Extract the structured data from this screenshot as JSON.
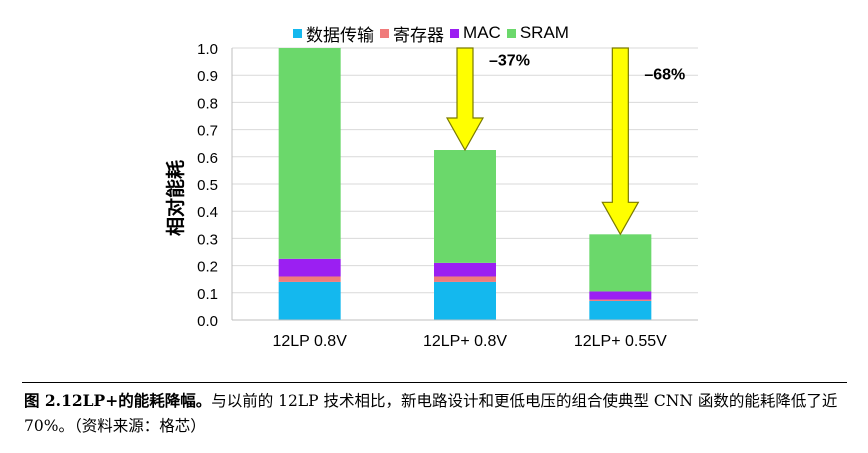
{
  "chart_data": {
    "type": "bar",
    "stacked": true,
    "ylabel": "相对能耗",
    "ylim": [
      0,
      1.0
    ],
    "yticks": [
      "0.0",
      "0.1",
      "0.2",
      "0.3",
      "0.4",
      "0.5",
      "0.6",
      "0.7",
      "0.8",
      "0.9",
      "1.0"
    ],
    "categories": [
      "12LP 0.8V",
      "12LP+ 0.8V",
      "12LP+ 0.55V"
    ],
    "series": [
      {
        "name": "数据传输",
        "color": "#14b8ee",
        "values": [
          0.14,
          0.14,
          0.07
        ]
      },
      {
        "name": "寄存器",
        "color": "#f07b7b",
        "values": [
          0.02,
          0.02,
          0.005
        ]
      },
      {
        "name": "MAC",
        "color": "#9b1ff2",
        "values": [
          0.065,
          0.05,
          0.03
        ]
      },
      {
        "name": "SRAM",
        "color": "#6bd86b",
        "values": [
          0.775,
          0.415,
          0.21
        ]
      }
    ],
    "annotations": [
      {
        "text": "–37%",
        "from": 1.0,
        "to": 0.625,
        "category_index": 1
      },
      {
        "text": "–68%",
        "from": 1.0,
        "to": 0.315,
        "category_index": 2
      }
    ],
    "grid": true,
    "legend_position": "top"
  },
  "caption": {
    "lead": "图 2.12LP+的能耗降幅。",
    "body": "与以前的 12LP 技术相比，新电路设计和更低电压的组合使典型 CNN 函数的能耗降低了近 70%。（资料来源：格芯）"
  }
}
